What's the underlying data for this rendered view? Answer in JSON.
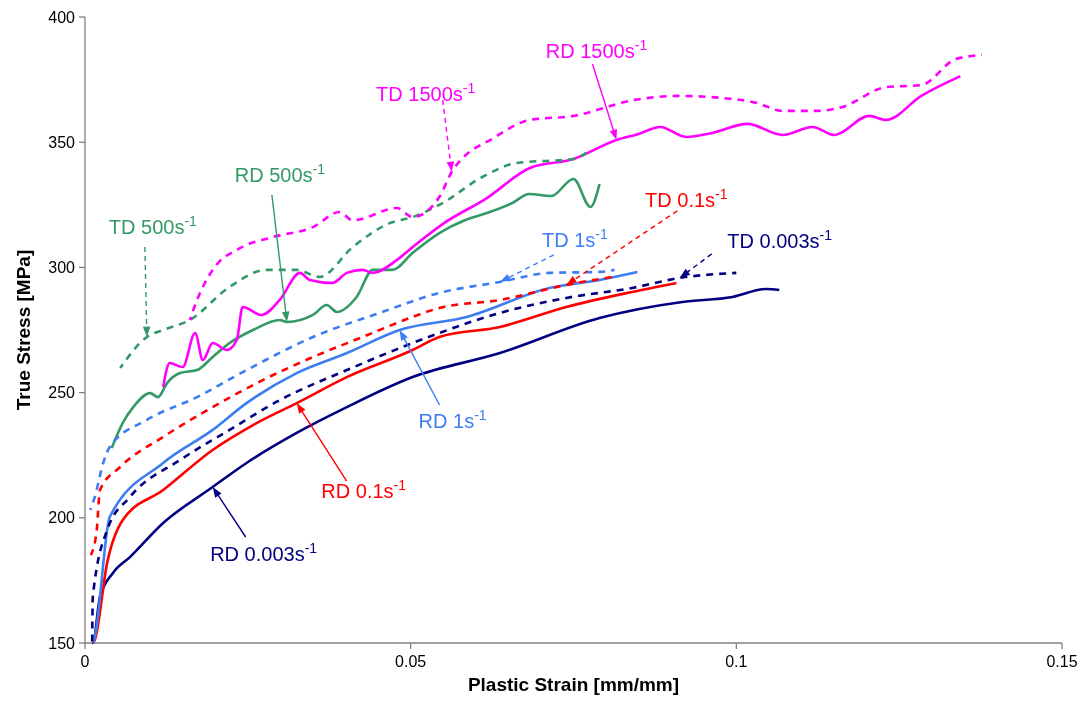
{
  "chart_data": {
    "type": "line",
    "xlabel": "Plastic Strain [mm/mm]",
    "ylabel": "True Stress [MPa]",
    "xlim": [
      0,
      0.15
    ],
    "xticks": [
      0,
      0.05,
      {
        "value": 0.1,
        "label": "0.1"
      },
      0.15
    ],
    "ylim": [
      150,
      400
    ],
    "yticks": [
      150,
      200,
      250,
      300,
      350,
      400
    ],
    "grid": false,
    "marker": "none",
    "series": [
      {
        "color": "#000080",
        "line_style": "solid",
        "x": [
          0.0011,
          0.0012,
          0.0023,
          0.0043,
          0.0069,
          0.012,
          0.0196,
          0.0248,
          0.0325,
          0.0402,
          0.0503,
          0.0637,
          0.079,
          0.0917,
          0.0994,
          0.1046,
          0.1066
        ],
        "values": [
          150,
          150,
          168.4,
          178,
          184.3,
          197.9,
          212.3,
          221.9,
          233.9,
          244.2,
          256.2,
          265.8,
          279.8,
          286.2,
          288.2,
          291.4,
          291
        ]
      },
      {
        "color": "#000080",
        "line_style": "dashed",
        "x": [
          0.0011,
          0.0012,
          0.0034,
          0.0069,
          0.0146,
          0.0222,
          0.0299,
          0.0402,
          0.0503,
          0.0544,
          0.0637,
          0.0739,
          0.084,
          0.0913,
          0.1
        ],
        "values": [
          150,
          168.4,
          195.1,
          208.3,
          223.1,
          235.1,
          247,
          259,
          269.8,
          273.8,
          281.8,
          287.8,
          291.8,
          295.8,
          297.8
        ]
      },
      {
        "color": "#ff0000",
        "line_style": "solid",
        "x": [
          0.0012,
          0.0015,
          0.0034,
          0.0058,
          0.012,
          0.0196,
          0.0264,
          0.0325,
          0.0402,
          0.0503,
          0.0544,
          0.0637,
          0.0739,
          0.084,
          0.0908
        ],
        "values": [
          150,
          151.2,
          182,
          199.1,
          211.1,
          227.1,
          237.9,
          245.8,
          256.2,
          267,
          272.2,
          276.2,
          284.2,
          290.2,
          293.8
        ]
      },
      {
        "color": "#ff0000",
        "line_style": "dashed",
        "x": [
          0.0009,
          0.0018,
          0.0023,
          0.0054,
          0.012,
          0.0196,
          0.0273,
          0.035,
          0.0426,
          0.0503,
          0.0544,
          0.0637,
          0.0739,
          0.081
        ],
        "values": [
          185.1,
          195.1,
          211.1,
          220.3,
          232.3,
          244.2,
          255,
          264.2,
          272.2,
          280.2,
          283.8,
          287,
          293,
          296.2
        ]
      },
      {
        "color": "#3d7df2",
        "line_style": "solid",
        "x": [
          0.0012,
          0.0015,
          0.0038,
          0.012,
          0.0196,
          0.0248,
          0.0325,
          0.0402,
          0.0483,
          0.0586,
          0.0713,
          0.079,
          0.0848
        ],
        "values": [
          150,
          152.4,
          200.3,
          221.9,
          235.1,
          245.8,
          257.8,
          265.8,
          275,
          280.2,
          291.8,
          295,
          298.2
        ]
      },
      {
        "color": "#3d7df2",
        "line_style": "dashed",
        "x": [
          0.0008,
          0.0015,
          0.0028,
          0.0038,
          0.0095,
          0.0172,
          0.0248,
          0.035,
          0.0452,
          0.0544,
          0.0637,
          0.0713,
          0.079,
          0.0813
        ],
        "values": [
          203.1,
          208.3,
          221.9,
          228.3,
          239.1,
          248.2,
          259,
          272.2,
          281.8,
          289.8,
          294.2,
          297.8,
          298.2,
          299
        ]
      },
      {
        "color": "#339966",
        "line_style": "solid",
        "x": [
          0.0041,
          0.0058,
          0.0074,
          0.01,
          0.0112,
          0.0126,
          0.0146,
          0.0172,
          0.0196,
          0.0222,
          0.0258,
          0.0299,
          0.031,
          0.035,
          0.0371,
          0.0387,
          0.0417,
          0.0442,
          0.0472,
          0.0503,
          0.0544,
          0.0583,
          0.0617,
          0.0656,
          0.0682,
          0.0716,
          0.075,
          0.0776,
          0.079
        ],
        "values": [
          227.9,
          237.9,
          244.2,
          249.8,
          248.2,
          253.8,
          257.8,
          259,
          264.2,
          269.8,
          275,
          279,
          278.2,
          281,
          285,
          282.2,
          288.2,
          299,
          299,
          305.8,
          313.7,
          318.8,
          321.7,
          325.7,
          329.3,
          328.5,
          335.3,
          324.1,
          333.3
        ]
      },
      {
        "color": "#339966",
        "line_style": "dashed",
        "x": [
          0.0054,
          0.0095,
          0.012,
          0.0161,
          0.0222,
          0.0279,
          0.0325,
          0.036,
          0.0411,
          0.0468,
          0.0503,
          0.0549,
          0.061,
          0.0663,
          0.075,
          0.0776
        ],
        "values": [
          259.8,
          272.2,
          275,
          279,
          292.2,
          299,
          299,
          296.2,
          308.1,
          317.7,
          320.1,
          325.7,
          336.1,
          341.7,
          343.3,
          346.9
        ]
      },
      {
        "color": "#ff00ff",
        "line_style": "solid",
        "x": [
          0.012,
          0.013,
          0.015,
          0.0169,
          0.0181,
          0.0196,
          0.0218,
          0.0233,
          0.0242,
          0.0271,
          0.0299,
          0.033,
          0.0345,
          0.038,
          0.0402,
          0.0426,
          0.0442,
          0.0479,
          0.0503,
          0.0549,
          0.0617,
          0.0683,
          0.075,
          0.0816,
          0.085,
          0.0883,
          0.0923,
          0.0963,
          0.1017,
          0.1071,
          0.1117,
          0.115,
          0.1204,
          0.123,
          0.1284,
          0.1344
        ],
        "values": [
          252.2,
          261.8,
          260.2,
          273.8,
          263,
          269.8,
          267,
          271,
          284.2,
          281,
          287,
          297.8,
          295,
          293.8,
          297.8,
          299,
          297.8,
          303,
          308.1,
          317.3,
          327.7,
          339.7,
          343.3,
          350.9,
          353.3,
          356.1,
          352.1,
          353.7,
          357.3,
          352.9,
          356.1,
          352.9,
          360.5,
          358.9,
          368.5,
          376.4
        ]
      },
      {
        "color": "#ff00ff",
        "line_style": "dashed",
        "x": [
          0.0161,
          0.0172,
          0.0196,
          0.0238,
          0.0288,
          0.035,
          0.0391,
          0.0411,
          0.0479,
          0.0503,
          0.0544,
          0.0563,
          0.063,
          0.0683,
          0.075,
          0.0844,
          0.091,
          0.0977,
          0.1031,
          0.1071,
          0.1123,
          0.1163,
          0.123,
          0.1284,
          0.1337,
          0.1377
        ],
        "values": [
          279,
          287,
          299,
          307.7,
          312.1,
          316.1,
          322.1,
          318.8,
          323.7,
          320.1,
          328.1,
          338.1,
          352.1,
          358.9,
          360.5,
          366.9,
          368.5,
          367.7,
          365.7,
          362.5,
          362.5,
          364.1,
          372,
          372.8,
          383.2,
          384.8
        ]
      }
    ],
    "annotations": [
      {
        "text": "RD 0.003s$^{-1}$",
        "x": 0.0196,
        "y": 212.3
      },
      {
        "text": "TD 0.003s$^{-1}$",
        "x": 0.0913,
        "y": 295.8
      },
      {
        "text": "RD 0.1s$^{-1}$",
        "x": 0.0325,
        "y": 245.8
      },
      {
        "text": "TD 0.1s$^{-1}$",
        "x": 0.0739,
        "y": 293
      },
      {
        "text": "RD 1s$^{-1}$",
        "x": 0.0483,
        "y": 275
      },
      {
        "text": "TD 1s$^{-1}$",
        "x": 0.0637,
        "y": 294.2
      },
      {
        "text": "RD 500s$^{-1}$",
        "x": 0.031,
        "y": 278.2
      },
      {
        "text": "TD 500s$^{-1}$",
        "x": 0.0095,
        "y": 272.2
      },
      {
        "text": "RD 1500s$^{-1}$",
        "x": 0.0816,
        "y": 350.9
      },
      {
        "text": "TD 1500s$^{-1}$",
        "x": 0.0563,
        "y": 338.1
      }
    ]
  }
}
